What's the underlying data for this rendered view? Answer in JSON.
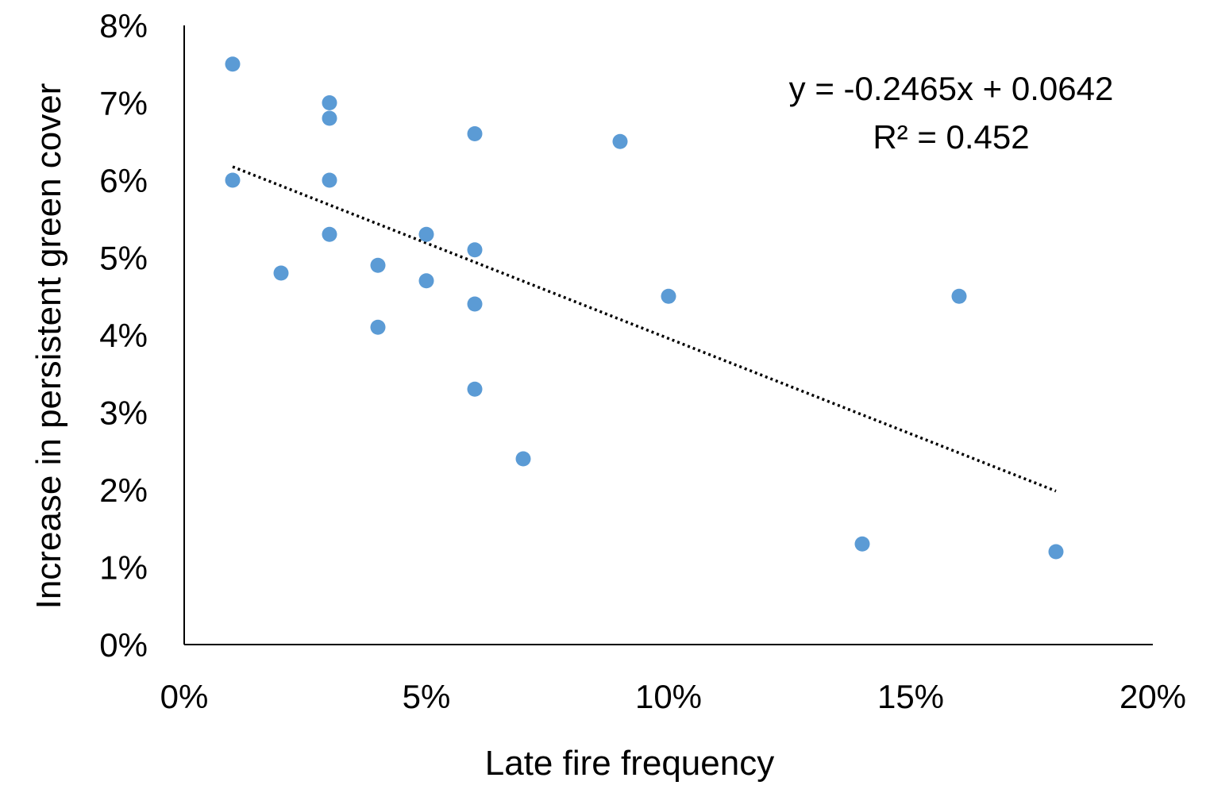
{
  "chart_data": {
    "type": "scatter",
    "title": "",
    "xlabel": "Late fire frequency",
    "ylabel": "Increase in persistent green cover",
    "xlim": [
      0,
      0.2
    ],
    "ylim": [
      0,
      0.08
    ],
    "xticks": [
      0,
      0.05,
      0.1,
      0.15,
      0.2
    ],
    "xtick_labels": [
      "0%",
      "5%",
      "10%",
      "15%",
      "20%"
    ],
    "yticks": [
      0,
      0.01,
      0.02,
      0.03,
      0.04,
      0.05,
      0.06,
      0.07,
      0.08
    ],
    "ytick_labels": [
      "0%",
      "1%",
      "2%",
      "3%",
      "4%",
      "5%",
      "6%",
      "7%",
      "8%"
    ],
    "grid": false,
    "legend": "none",
    "point_color": "#5b9bd5",
    "trendline_color": "#000000",
    "series": [
      {
        "points": [
          {
            "x": 0.01,
            "y": 0.075
          },
          {
            "x": 0.01,
            "y": 0.06
          },
          {
            "x": 0.02,
            "y": 0.048
          },
          {
            "x": 0.03,
            "y": 0.07
          },
          {
            "x": 0.03,
            "y": 0.068
          },
          {
            "x": 0.03,
            "y": 0.06
          },
          {
            "x": 0.03,
            "y": 0.053
          },
          {
            "x": 0.04,
            "y": 0.049
          },
          {
            "x": 0.04,
            "y": 0.041
          },
          {
            "x": 0.05,
            "y": 0.053
          },
          {
            "x": 0.05,
            "y": 0.047
          },
          {
            "x": 0.06,
            "y": 0.066
          },
          {
            "x": 0.06,
            "y": 0.051
          },
          {
            "x": 0.06,
            "y": 0.044
          },
          {
            "x": 0.06,
            "y": 0.033
          },
          {
            "x": 0.07,
            "y": 0.024
          },
          {
            "x": 0.09,
            "y": 0.065
          },
          {
            "x": 0.1,
            "y": 0.045
          },
          {
            "x": 0.14,
            "y": 0.013
          },
          {
            "x": 0.16,
            "y": 0.045
          },
          {
            "x": 0.18,
            "y": 0.012
          }
        ]
      }
    ],
    "trendline": {
      "type": "linear",
      "slope": -0.2465,
      "intercept": 0.0642,
      "x_range": [
        0.01,
        0.18
      ],
      "style": "dotted"
    },
    "annotations": {
      "equation": "y = -0.2465x + 0.0642",
      "r_squared": "R² = 0.452"
    }
  }
}
